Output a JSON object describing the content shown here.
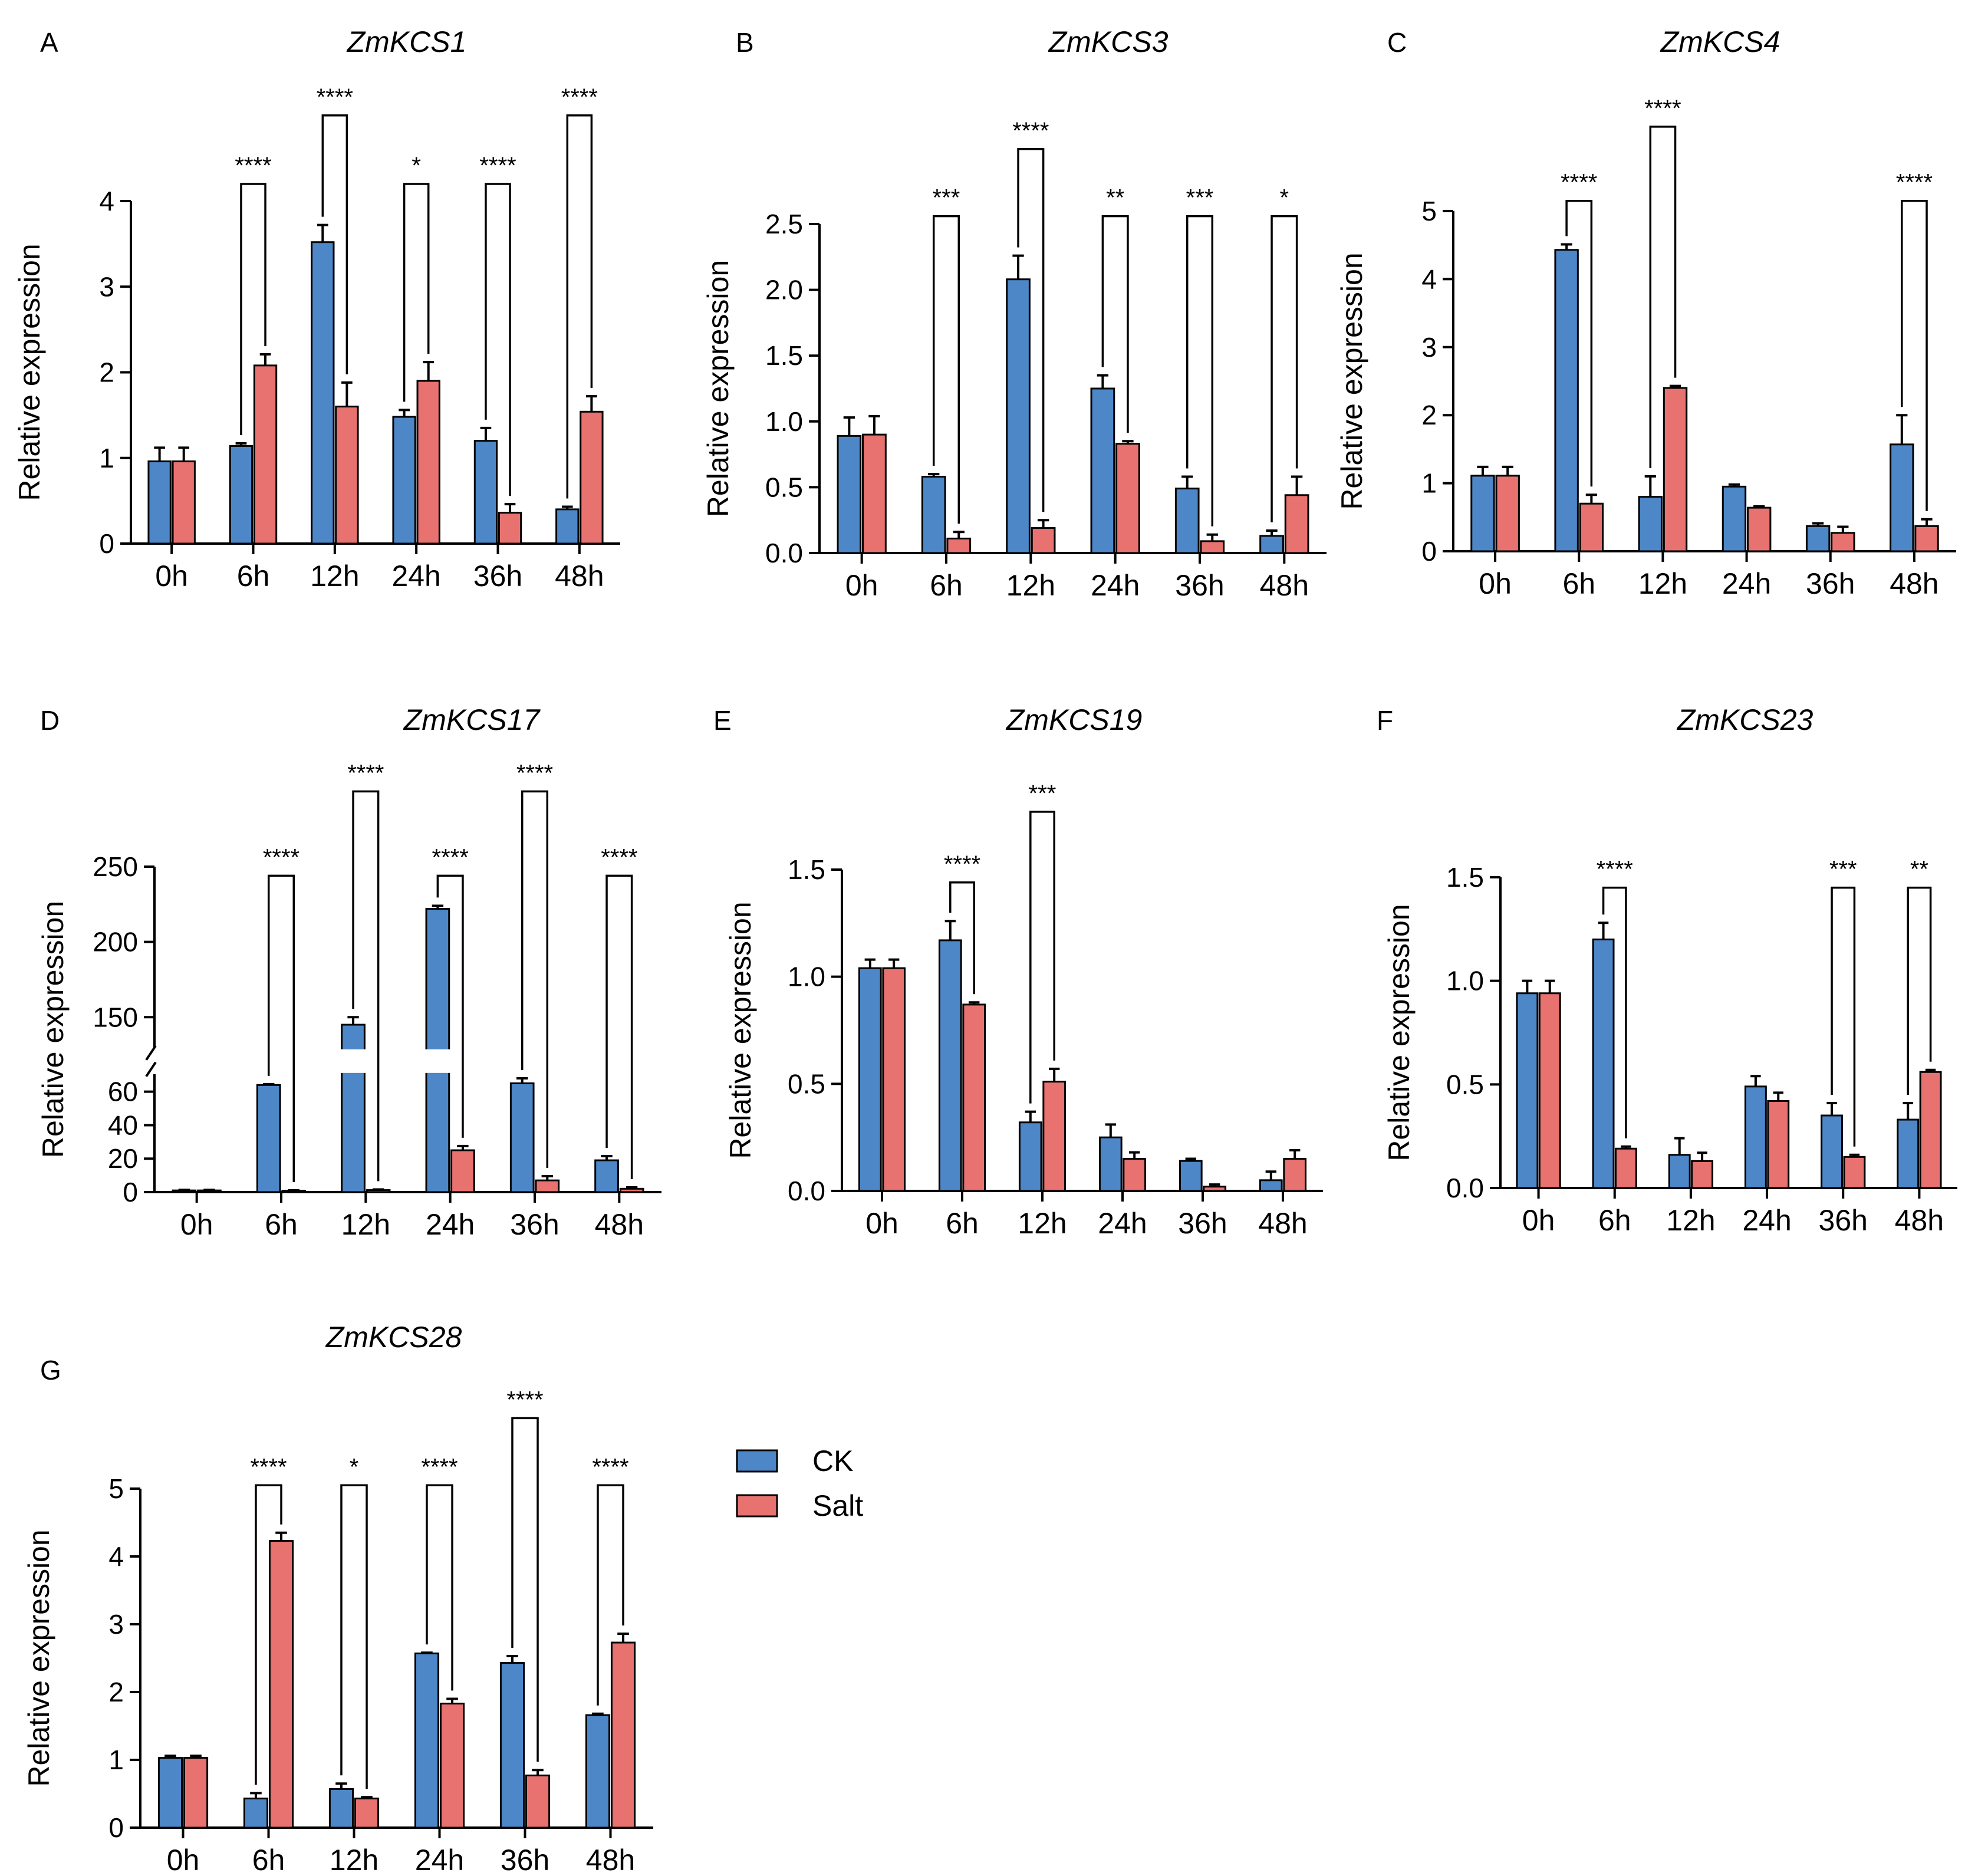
{
  "colors": {
    "ck": "#4d87c8",
    "salt": "#e8726f",
    "axis": "#000000",
    "background": "#ffffff"
  },
  "legend": {
    "entries": [
      {
        "label": "CK",
        "color": "#4d87c8"
      },
      {
        "label": "Salt",
        "color": "#e8726f"
      }
    ]
  },
  "chart_data": [
    {
      "panel": "A",
      "title": "ZmKCS1",
      "type": "bar",
      "ylabel": "Relative expression",
      "xlabel": "",
      "categories": [
        "0h",
        "6h",
        "12h",
        "24h",
        "36h",
        "48h"
      ],
      "ylim": [
        0,
        4
      ],
      "yticks": [
        {
          "value": 0,
          "label": "0"
        },
        {
          "value": 1,
          "label": "1"
        },
        {
          "value": 2,
          "label": "2"
        },
        {
          "value": 3,
          "label": "3"
        },
        {
          "value": 4,
          "label": "4"
        }
      ],
      "series": [
        {
          "name": "CK",
          "values": [
            0.96,
            1.14,
            3.52,
            1.48,
            1.2,
            0.4
          ],
          "errors": [
            0.16,
            0.03,
            0.2,
            0.08,
            0.15,
            0.03
          ]
        },
        {
          "name": "Salt",
          "values": [
            0.96,
            2.08,
            1.6,
            1.9,
            0.36,
            1.54
          ],
          "errors": [
            0.16,
            0.13,
            0.28,
            0.22,
            0.1,
            0.18
          ]
        }
      ],
      "significance": [
        {
          "category": "6h",
          "label": "****",
          "top": 4.2
        },
        {
          "category": "12h",
          "label": "****",
          "top": 5.0
        },
        {
          "category": "24h",
          "label": "*",
          "top": 4.2
        },
        {
          "category": "36h",
          "label": "****",
          "top": 4.2
        },
        {
          "category": "48h",
          "label": "****",
          "top": 5.0
        }
      ]
    },
    {
      "panel": "B",
      "title": "ZmKCS3",
      "type": "bar",
      "ylabel": "Relative expression",
      "xlabel": "",
      "categories": [
        "0h",
        "6h",
        "12h",
        "24h",
        "36h",
        "48h"
      ],
      "ylim": [
        0,
        2.5
      ],
      "yticks": [
        {
          "value": 0,
          "label": "0.0"
        },
        {
          "value": 0.5,
          "label": "0.5"
        },
        {
          "value": 1.0,
          "label": "1.0"
        },
        {
          "value": 1.5,
          "label": "1.5"
        },
        {
          "value": 2.0,
          "label": "2.0"
        },
        {
          "value": 2.5,
          "label": "2.5"
        }
      ],
      "series": [
        {
          "name": "CK",
          "values": [
            0.89,
            0.58,
            2.08,
            1.25,
            0.49,
            0.13
          ],
          "errors": [
            0.14,
            0.02,
            0.18,
            0.1,
            0.09,
            0.04
          ]
        },
        {
          "name": "Salt",
          "values": [
            0.9,
            0.11,
            0.19,
            0.83,
            0.09,
            0.44
          ],
          "errors": [
            0.14,
            0.05,
            0.06,
            0.02,
            0.05,
            0.14
          ]
        }
      ],
      "significance": [
        {
          "category": "6h",
          "label": "***",
          "top": 2.56
        },
        {
          "category": "12h",
          "label": "****",
          "top": 3.07
        },
        {
          "category": "24h",
          "label": "**",
          "top": 2.56
        },
        {
          "category": "36h",
          "label": "***",
          "top": 2.56
        },
        {
          "category": "48h",
          "label": "*",
          "top": 2.56
        }
      ]
    },
    {
      "panel": "C",
      "title": "ZmKCS4",
      "type": "bar",
      "ylabel": "Relative expression",
      "xlabel": "",
      "categories": [
        "0h",
        "6h",
        "12h",
        "24h",
        "36h",
        "48h"
      ],
      "ylim": [
        0,
        5
      ],
      "yticks": [
        {
          "value": 0,
          "label": "0"
        },
        {
          "value": 1,
          "label": "1"
        },
        {
          "value": 2,
          "label": "2"
        },
        {
          "value": 3,
          "label": "3"
        },
        {
          "value": 4,
          "label": "4"
        },
        {
          "value": 5,
          "label": "5"
        }
      ],
      "series": [
        {
          "name": "CK",
          "values": [
            1.11,
            4.43,
            0.8,
            0.95,
            0.37,
            1.57
          ],
          "errors": [
            0.13,
            0.08,
            0.3,
            0.03,
            0.04,
            0.43
          ]
        },
        {
          "name": "Salt",
          "values": [
            1.11,
            0.7,
            2.4,
            0.64,
            0.27,
            0.37
          ],
          "errors": [
            0.13,
            0.13,
            0.03,
            0.02,
            0.09,
            0.1
          ]
        }
      ],
      "significance": [
        {
          "category": "6h",
          "label": "****",
          "top": 5.15
        },
        {
          "category": "12h",
          "label": "****",
          "top": 6.24
        },
        {
          "category": "48h",
          "label": "****",
          "top": 5.15
        }
      ]
    },
    {
      "panel": "D",
      "title": "ZmKCS17",
      "type": "bar",
      "ylabel": "Relative expression",
      "xlabel": "",
      "categories": [
        "0h",
        "6h",
        "12h",
        "24h",
        "36h",
        "48h"
      ],
      "ylim": [
        0,
        250
      ],
      "axis_break": [
        70,
        130
      ],
      "yticks": [
        {
          "value": 0,
          "label": "0"
        },
        {
          "value": 20,
          "label": "20"
        },
        {
          "value": 40,
          "label": "40"
        },
        {
          "value": 60,
          "label": "60"
        },
        {
          "value": 150,
          "label": "150"
        },
        {
          "value": 200,
          "label": "200"
        },
        {
          "value": 250,
          "label": "250"
        }
      ],
      "series": [
        {
          "name": "CK",
          "values": [
            1.0,
            64.0,
            145.0,
            222.0,
            65.0,
            19.0
          ],
          "errors": [
            0.3,
            0.5,
            5.0,
            2.0,
            3.0,
            2.5
          ]
        },
        {
          "name": "Salt",
          "values": [
            1.0,
            0.8,
            1.2,
            25.0,
            7.0,
            2.0
          ],
          "errors": [
            0.3,
            0.3,
            0.4,
            2.5,
            2.5,
            0.8
          ]
        }
      ],
      "significance": [
        {
          "category": "6h",
          "label": "****",
          "top": 244
        },
        {
          "category": "12h",
          "label": "****",
          "top": 300
        },
        {
          "category": "24h",
          "label": "****",
          "top": 244
        },
        {
          "category": "36h",
          "label": "****",
          "top": 300
        },
        {
          "category": "48h",
          "label": "****",
          "top": 244
        }
      ]
    },
    {
      "panel": "E",
      "title": "ZmKCS19",
      "type": "bar",
      "ylabel": "Relative expression",
      "xlabel": "",
      "categories": [
        "0h",
        "6h",
        "12h",
        "24h",
        "36h",
        "48h"
      ],
      "ylim": [
        0,
        1.5
      ],
      "yticks": [
        {
          "value": 0,
          "label": "0.0"
        },
        {
          "value": 0.5,
          "label": "0.5"
        },
        {
          "value": 1.0,
          "label": "1.0"
        },
        {
          "value": 1.5,
          "label": "1.5"
        }
      ],
      "series": [
        {
          "name": "CK",
          "values": [
            1.04,
            1.17,
            0.32,
            0.25,
            0.14,
            0.05
          ],
          "errors": [
            0.04,
            0.09,
            0.05,
            0.06,
            0.01,
            0.04
          ]
        },
        {
          "name": "Salt",
          "values": [
            1.04,
            0.87,
            0.51,
            0.15,
            0.02,
            0.15
          ],
          "errors": [
            0.04,
            0.01,
            0.06,
            0.03,
            0.01,
            0.04
          ]
        }
      ],
      "significance": [
        {
          "category": "6h",
          "label": "****",
          "top": 1.44
        },
        {
          "category": "12h",
          "label": "***",
          "top": 1.77
        }
      ]
    },
    {
      "panel": "F",
      "title": "ZmKCS23",
      "type": "bar",
      "ylabel": "Relative expression",
      "xlabel": "",
      "categories": [
        "0h",
        "6h",
        "12h",
        "24h",
        "36h",
        "48h"
      ],
      "ylim": [
        0,
        1.5
      ],
      "yticks": [
        {
          "value": 0,
          "label": "0.0"
        },
        {
          "value": 0.5,
          "label": "0.5"
        },
        {
          "value": 1.0,
          "label": "1.0"
        },
        {
          "value": 1.5,
          "label": "1.5"
        }
      ],
      "series": [
        {
          "name": "CK",
          "values": [
            0.94,
            1.2,
            0.16,
            0.49,
            0.35,
            0.33
          ],
          "errors": [
            0.06,
            0.08,
            0.08,
            0.05,
            0.06,
            0.08
          ]
        },
        {
          "name": "Salt",
          "values": [
            0.94,
            0.19,
            0.13,
            0.42,
            0.15,
            0.56
          ],
          "errors": [
            0.06,
            0.01,
            0.04,
            0.04,
            0.01,
            0.01
          ]
        }
      ],
      "significance": [
        {
          "category": "6h",
          "label": "****",
          "top": 1.45
        },
        {
          "category": "36h",
          "label": "***",
          "top": 1.45
        },
        {
          "category": "48h",
          "label": "**",
          "top": 1.45
        }
      ]
    },
    {
      "panel": "G",
      "title": "ZmKCS28",
      "type": "bar",
      "ylabel": "Relative expression",
      "xlabel": "",
      "categories": [
        "0h",
        "6h",
        "12h",
        "24h",
        "36h",
        "48h"
      ],
      "ylim": [
        0,
        5
      ],
      "yticks": [
        {
          "value": 0,
          "label": "0"
        },
        {
          "value": 1,
          "label": "1"
        },
        {
          "value": 2,
          "label": "2"
        },
        {
          "value": 3,
          "label": "3"
        },
        {
          "value": 4,
          "label": "4"
        },
        {
          "value": 5,
          "label": "5"
        }
      ],
      "series": [
        {
          "name": "CK",
          "values": [
            1.03,
            0.43,
            0.57,
            2.57,
            2.43,
            1.66
          ],
          "errors": [
            0.03,
            0.08,
            0.08,
            0.01,
            0.1,
            0.02
          ]
        },
        {
          "name": "Salt",
          "values": [
            1.03,
            4.23,
            0.43,
            1.83,
            0.77,
            2.73
          ],
          "errors": [
            0.03,
            0.12,
            0.02,
            0.07,
            0.08,
            0.13
          ]
        }
      ],
      "significance": [
        {
          "category": "6h",
          "label": "****",
          "top": 5.05
        },
        {
          "category": "12h",
          "label": "*",
          "top": 5.05
        },
        {
          "category": "24h",
          "label": "****",
          "top": 5.05
        },
        {
          "category": "36h",
          "label": "****",
          "top": 6.04
        },
        {
          "category": "48h",
          "label": "****",
          "top": 5.05
        }
      ]
    }
  ]
}
